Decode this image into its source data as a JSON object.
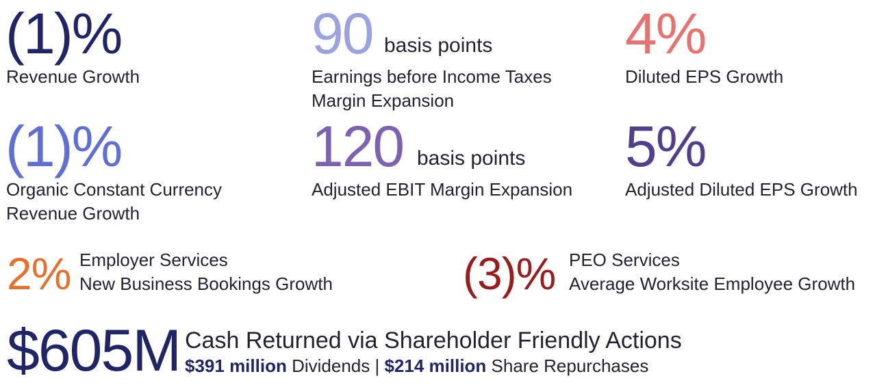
{
  "metrics": [
    {
      "value": "(1)%",
      "label": [
        "Revenue Growth"
      ]
    },
    {
      "value": "90",
      "unit": "basis points",
      "label": [
        "Earnings before Income Taxes",
        "Margin Expansion"
      ]
    },
    {
      "value": "4%",
      "label": [
        "Diluted EPS Growth"
      ]
    },
    {
      "value": "(1)%",
      "label": [
        "Organic Constant Currency",
        "Revenue Growth"
      ]
    },
    {
      "value": "120",
      "unit": "basis points",
      "label": [
        "Adjusted EBIT Margin Expansion"
      ]
    },
    {
      "value": "5%",
      "label": [
        "Adjusted Diluted EPS Growth"
      ]
    }
  ],
  "highlights": [
    {
      "value": "2%",
      "label": [
        "Employer Services",
        "New Business Bookings Growth"
      ]
    },
    {
      "value": "(3)%",
      "label": [
        "PEO Services",
        "Average Worksite Employee Growth"
      ]
    }
  ],
  "cash": {
    "value": "$605M",
    "title": "Cash Returned via Shareholder Friendly Actions",
    "details": [
      {
        "amount": "$391 million",
        "text": "Dividends |"
      },
      {
        "amount": "$214 million",
        "text": "Share Repurchases"
      }
    ]
  }
}
